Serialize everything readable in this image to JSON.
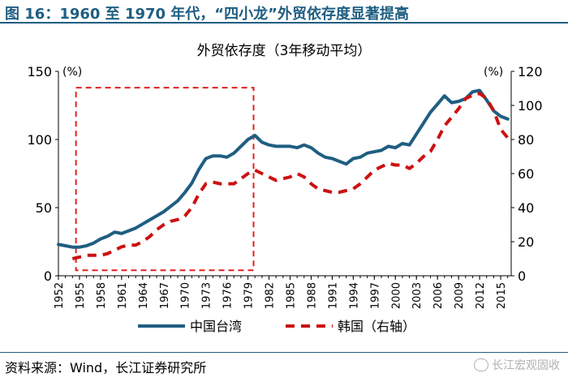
{
  "figure_title": "图 16：1960 至 1970 年代，“四小龙”外贸依存度显著提高",
  "source_note": "资料来源：Wind，长江证券研究所",
  "watermark": "长江宏观固收",
  "colors": {
    "taiwan": "#1f5e82",
    "korea": "#cc1111",
    "box": "#e02020",
    "accent": "#1f5e82"
  },
  "chart_data": {
    "type": "line",
    "title": "外贸依存度（3年移动平均）",
    "y_left_unit": "(%)",
    "y_right_unit": "(%)",
    "y_left_lim": [
      0,
      150
    ],
    "y_left_ticks": [
      "0",
      "50",
      "100",
      "150"
    ],
    "y_right_lim": [
      0,
      120
    ],
    "y_right_ticks": [
      "0",
      "20",
      "40",
      "60",
      "80",
      "100",
      "120"
    ],
    "x_ticks": [
      "1952",
      "1955",
      "1958",
      "1961",
      "1964",
      "1967",
      "1970",
      "1973",
      "1976",
      "1979",
      "1982",
      "1985",
      "1988",
      "1991",
      "1994",
      "1997",
      "2000",
      "2003",
      "2006",
      "2009",
      "2012",
      "2015"
    ],
    "legend_position": "bottom",
    "highlight_box": {
      "x_start": 1954.5,
      "x_end": 1979.8
    },
    "series": [
      {
        "name": "中国台湾",
        "axis": "left",
        "style": "solid",
        "x": [
          1952,
          1953,
          1954,
          1955,
          1956,
          1957,
          1958,
          1959,
          1960,
          1961,
          1962,
          1963,
          1964,
          1965,
          1966,
          1967,
          1968,
          1969,
          1970,
          1971,
          1972,
          1973,
          1974,
          1975,
          1976,
          1977,
          1978,
          1979,
          1980,
          1981,
          1982,
          1983,
          1984,
          1985,
          1986,
          1987,
          1988,
          1989,
          1990,
          1991,
          1992,
          1993,
          1994,
          1995,
          1996,
          1997,
          1998,
          1999,
          2000,
          2001,
          2002,
          2003,
          2004,
          2005,
          2006,
          2007,
          2008,
          2009,
          2010,
          2011,
          2012,
          2013,
          2014,
          2015,
          2016
        ],
        "values": [
          23,
          22,
          21,
          21,
          22,
          24,
          27,
          29,
          32,
          31,
          33,
          35,
          38,
          41,
          44,
          47,
          51,
          55,
          61,
          68,
          78,
          86,
          88,
          88,
          87,
          90,
          95,
          100,
          103,
          98,
          96,
          95,
          95,
          95,
          94,
          96,
          94,
          90,
          87,
          86,
          84,
          82,
          86,
          87,
          90,
          91,
          92,
          95,
          94,
          97,
          96,
          104,
          112,
          120,
          126,
          132,
          127,
          128,
          130,
          135,
          136,
          129,
          121,
          117,
          115
        ]
      },
      {
        "name": "韩国（右轴）",
        "axis": "right",
        "style": "dashed",
        "x": [
          1954,
          1955,
          1956,
          1957,
          1958,
          1959,
          1960,
          1961,
          1962,
          1963,
          1964,
          1965,
          1966,
          1967,
          1968,
          1969,
          1970,
          1971,
          1972,
          1973,
          1974,
          1975,
          1976,
          1977,
          1978,
          1979,
          1980,
          1981,
          1982,
          1983,
          1984,
          1985,
          1986,
          1987,
          1988,
          1989,
          1990,
          1991,
          1992,
          1993,
          1994,
          1995,
          1996,
          1997,
          1998,
          1999,
          2000,
          2001,
          2002,
          2003,
          2004,
          2005,
          2006,
          2007,
          2008,
          2009,
          2010,
          2011,
          2012,
          2013,
          2014,
          2015,
          2016
        ],
        "values": [
          10,
          11,
          12,
          12,
          12,
          13,
          15,
          17,
          18,
          18,
          20,
          23,
          27,
          30,
          32,
          33,
          35,
          40,
          48,
          54,
          55,
          54,
          54,
          54,
          57,
          60,
          62,
          60,
          58,
          56,
          57,
          58,
          60,
          58,
          54,
          51,
          50,
          49,
          49,
          50,
          51,
          54,
          58,
          62,
          64,
          66,
          65,
          65,
          63,
          66,
          70,
          73,
          80,
          88,
          93,
          98,
          104,
          106,
          107,
          104,
          97,
          86,
          81
        ]
      }
    ]
  }
}
